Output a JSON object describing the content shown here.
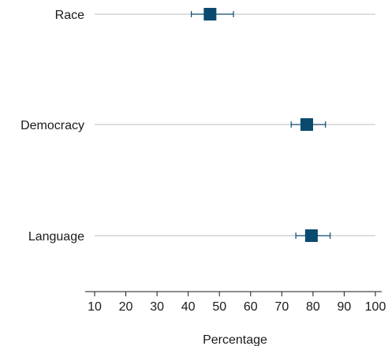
{
  "chart_data": {
    "type": "dot-errorbar",
    "title": "",
    "xlabel": "Percentage",
    "ylabel": "",
    "xlim": [
      10,
      100
    ],
    "xticks": [
      10,
      20,
      30,
      40,
      50,
      60,
      70,
      80,
      90,
      100
    ],
    "grid": false,
    "marker_color": "#0b4a6f",
    "refline_color": "#bdbdbd",
    "categories": [
      "Race",
      "Democracy",
      "Language"
    ],
    "points": [
      {
        "label": "Race",
        "value": 47,
        "ci_low": 41,
        "ci_high": 54.5
      },
      {
        "label": "Democracy",
        "value": 78,
        "ci_low": 73,
        "ci_high": 84
      },
      {
        "label": "Language",
        "value": 79.5,
        "ci_low": 74.5,
        "ci_high": 85.5
      }
    ]
  }
}
